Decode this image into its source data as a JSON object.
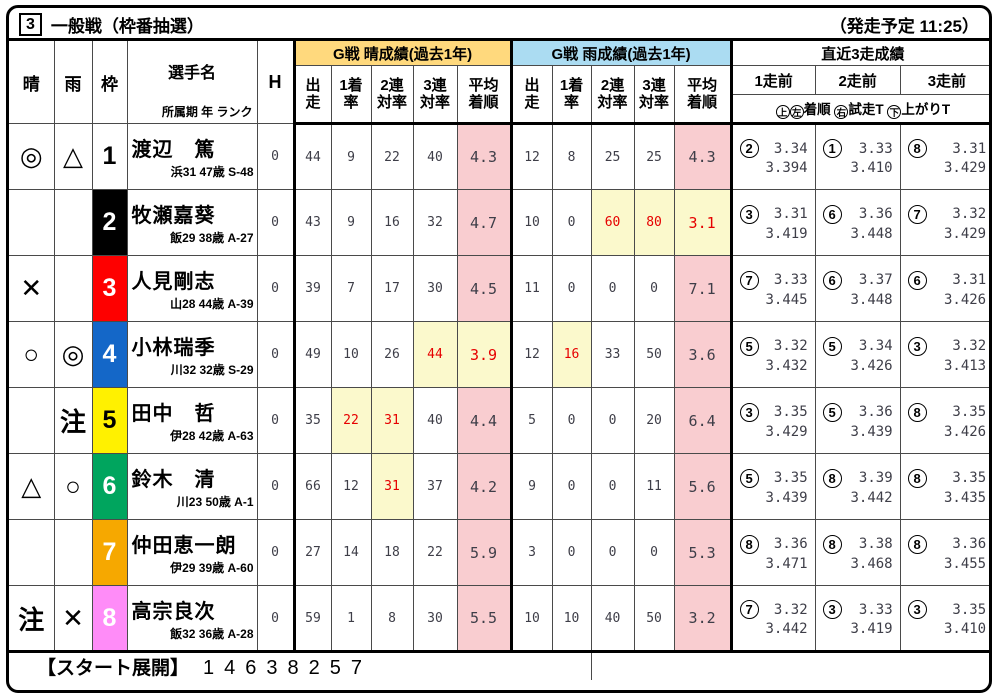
{
  "colors": {
    "sun_header_bg": "#ffd97d",
    "rain_header_bg": "#abdcf2",
    "pink_cell_bg": "#f9cdd0",
    "highlight_cell_bg": "#fbf9cc",
    "highlight_text": "#e60000"
  },
  "title": {
    "race_number": "3",
    "race_name": "一般戦（枠番抽選）",
    "start_label": "（発走予定 11:25）"
  },
  "header": {
    "sun_col": "晴",
    "rain_col": "雨",
    "frame_col": "枠",
    "player_col": "選手名",
    "player_sub": "所属期 年 ランク",
    "handicap_col": "H",
    "sun_section": "G戦 晴成績(過去1年)",
    "rain_section": "G戦 雨成績(過去1年)",
    "stat_cols": [
      {
        "top": "出",
        "bottom": "走"
      },
      {
        "top": "1着",
        "bottom": "率"
      },
      {
        "top": "2連",
        "bottom": "対率"
      },
      {
        "top": "3連",
        "bottom": "対率"
      },
      {
        "top": "平均",
        "bottom": "着順"
      }
    ],
    "recent_section": "直近3走成績",
    "recent_cols": [
      "1走前",
      "2走前",
      "3走前"
    ],
    "legend": {
      "top": "上",
      "left": "左",
      "finish": "着順",
      "right": "右",
      "trial": "試走T",
      "bottom": "下",
      "lap": "上がりT"
    }
  },
  "rows": [
    {
      "sun_mark": "◎",
      "rain_mark": "△",
      "frame": "1",
      "frame_bg": "#ffffff",
      "frame_fg": "#000000",
      "name": "渡辺　篤",
      "profile": "浜31 47歳 S-48",
      "h": "0",
      "sun_stats": [
        {
          "v": "44"
        },
        {
          "v": "9"
        },
        {
          "v": "22"
        },
        {
          "v": "40"
        },
        {
          "v": "4.3",
          "s": "pink"
        }
      ],
      "rain_stats": [
        {
          "v": "12"
        },
        {
          "v": "8"
        },
        {
          "v": "25"
        },
        {
          "v": "25"
        },
        {
          "v": "4.3",
          "s": "pink"
        }
      ],
      "recent": [
        {
          "pos": "2",
          "trial": "3.34",
          "lap": "3.394"
        },
        {
          "pos": "1",
          "trial": "3.33",
          "lap": "3.410"
        },
        {
          "pos": "8",
          "trial": "3.31",
          "lap": "3.429"
        }
      ]
    },
    {
      "sun_mark": "",
      "rain_mark": "",
      "frame": "2",
      "frame_bg": "#000000",
      "frame_fg": "#ffffff",
      "name": "牧瀬嘉葵",
      "profile": "飯29 38歳 A-27",
      "h": "0",
      "sun_stats": [
        {
          "v": "43"
        },
        {
          "v": "9"
        },
        {
          "v": "16"
        },
        {
          "v": "32"
        },
        {
          "v": "4.7",
          "s": "pink"
        }
      ],
      "rain_stats": [
        {
          "v": "10"
        },
        {
          "v": "0"
        },
        {
          "v": "60",
          "s": "hl"
        },
        {
          "v": "80",
          "s": "hl"
        },
        {
          "v": "3.1",
          "s": "hl"
        }
      ],
      "recent": [
        {
          "pos": "3",
          "trial": "3.31",
          "lap": "3.419"
        },
        {
          "pos": "6",
          "trial": "3.36",
          "lap": "3.448"
        },
        {
          "pos": "7",
          "trial": "3.32",
          "lap": "3.429"
        }
      ]
    },
    {
      "sun_mark": "✕",
      "rain_mark": "",
      "frame": "3",
      "frame_bg": "#fe0000",
      "frame_fg": "#ffffff",
      "name": "人見剛志",
      "profile": "山28 44歳 A-39",
      "h": "0",
      "sun_stats": [
        {
          "v": "39"
        },
        {
          "v": "7"
        },
        {
          "v": "17"
        },
        {
          "v": "30"
        },
        {
          "v": "4.5",
          "s": "pink"
        }
      ],
      "rain_stats": [
        {
          "v": "11"
        },
        {
          "v": "0"
        },
        {
          "v": "0"
        },
        {
          "v": "0"
        },
        {
          "v": "7.1",
          "s": "pink"
        }
      ],
      "recent": [
        {
          "pos": "7",
          "trial": "3.33",
          "lap": "3.445"
        },
        {
          "pos": "6",
          "trial": "3.37",
          "lap": "3.448"
        },
        {
          "pos": "6",
          "trial": "3.31",
          "lap": "3.426"
        }
      ]
    },
    {
      "sun_mark": "○",
      "rain_mark": "◎",
      "frame": "4",
      "frame_bg": "#1467c8",
      "frame_fg": "#ffffff",
      "name": "小林瑞季",
      "profile": "川32 32歳 S-29",
      "h": "0",
      "sun_stats": [
        {
          "v": "49"
        },
        {
          "v": "10"
        },
        {
          "v": "26"
        },
        {
          "v": "44",
          "s": "hl"
        },
        {
          "v": "3.9",
          "s": "hl"
        }
      ],
      "rain_stats": [
        {
          "v": "12"
        },
        {
          "v": "16",
          "s": "hl"
        },
        {
          "v": "33"
        },
        {
          "v": "50"
        },
        {
          "v": "3.6",
          "s": "pink"
        }
      ],
      "recent": [
        {
          "pos": "5",
          "trial": "3.32",
          "lap": "3.432"
        },
        {
          "pos": "5",
          "trial": "3.34",
          "lap": "3.426"
        },
        {
          "pos": "3",
          "trial": "3.32",
          "lap": "3.413"
        }
      ]
    },
    {
      "sun_mark": "",
      "rain_mark": "注",
      "frame": "5",
      "frame_bg": "#fff100",
      "frame_fg": "#000000",
      "name": "田中　哲",
      "profile": "伊28 42歳 A-63",
      "h": "0",
      "sun_stats": [
        {
          "v": "35"
        },
        {
          "v": "22",
          "s": "hl"
        },
        {
          "v": "31",
          "s": "hl"
        },
        {
          "v": "40"
        },
        {
          "v": "4.4",
          "s": "pink"
        }
      ],
      "rain_stats": [
        {
          "v": "5"
        },
        {
          "v": "0"
        },
        {
          "v": "0"
        },
        {
          "v": "20"
        },
        {
          "v": "6.4",
          "s": "pink"
        }
      ],
      "recent": [
        {
          "pos": "3",
          "trial": "3.35",
          "lap": "3.429"
        },
        {
          "pos": "5",
          "trial": "3.36",
          "lap": "3.439"
        },
        {
          "pos": "8",
          "trial": "3.35",
          "lap": "3.426"
        }
      ]
    },
    {
      "sun_mark": "△",
      "rain_mark": "○",
      "frame": "6",
      "frame_bg": "#00a55e",
      "frame_fg": "#ffffff",
      "name": "鈴木　清",
      "profile": "川23 50歳 A-1",
      "h": "0",
      "sun_stats": [
        {
          "v": "66"
        },
        {
          "v": "12"
        },
        {
          "v": "31",
          "s": "hl"
        },
        {
          "v": "37"
        },
        {
          "v": "4.2",
          "s": "pink"
        }
      ],
      "rain_stats": [
        {
          "v": "9"
        },
        {
          "v": "0"
        },
        {
          "v": "0"
        },
        {
          "v": "11"
        },
        {
          "v": "5.6",
          "s": "pink"
        }
      ],
      "recent": [
        {
          "pos": "5",
          "trial": "3.35",
          "lap": "3.439"
        },
        {
          "pos": "8",
          "trial": "3.39",
          "lap": "3.442"
        },
        {
          "pos": "8",
          "trial": "3.35",
          "lap": "3.435"
        }
      ]
    },
    {
      "sun_mark": "",
      "rain_mark": "",
      "frame": "7",
      "frame_bg": "#f6a800",
      "frame_fg": "#ffffff",
      "name": "仲田恵一朗",
      "profile": "伊29 39歳 A-60",
      "h": "0",
      "sun_stats": [
        {
          "v": "27"
        },
        {
          "v": "14"
        },
        {
          "v": "18"
        },
        {
          "v": "22"
        },
        {
          "v": "5.9",
          "s": "pink"
        }
      ],
      "rain_stats": [
        {
          "v": "3"
        },
        {
          "v": "0"
        },
        {
          "v": "0"
        },
        {
          "v": "0"
        },
        {
          "v": "5.3",
          "s": "pink"
        }
      ],
      "recent": [
        {
          "pos": "8",
          "trial": "3.36",
          "lap": "3.471"
        },
        {
          "pos": "8",
          "trial": "3.38",
          "lap": "3.468"
        },
        {
          "pos": "8",
          "trial": "3.36",
          "lap": "3.455"
        }
      ]
    },
    {
      "sun_mark": "注",
      "rain_mark": "✕",
      "frame": "8",
      "frame_bg": "#ff8cf8",
      "frame_fg": "#ffffff",
      "name": "高宗良次",
      "profile": "飯32 36歳 A-28",
      "h": "0",
      "sun_stats": [
        {
          "v": "59"
        },
        {
          "v": "1"
        },
        {
          "v": "8"
        },
        {
          "v": "30"
        },
        {
          "v": "5.5",
          "s": "pink"
        }
      ],
      "rain_stats": [
        {
          "v": "10"
        },
        {
          "v": "10"
        },
        {
          "v": "40"
        },
        {
          "v": "50"
        },
        {
          "v": "3.2",
          "s": "pink"
        }
      ],
      "recent": [
        {
          "pos": "7",
          "trial": "3.32",
          "lap": "3.442"
        },
        {
          "pos": "3",
          "trial": "3.33",
          "lap": "3.419"
        },
        {
          "pos": "3",
          "trial": "3.35",
          "lap": "3.410"
        }
      ]
    }
  ],
  "footer": {
    "label": "【スタート展開】",
    "start_order": "14638257"
  }
}
